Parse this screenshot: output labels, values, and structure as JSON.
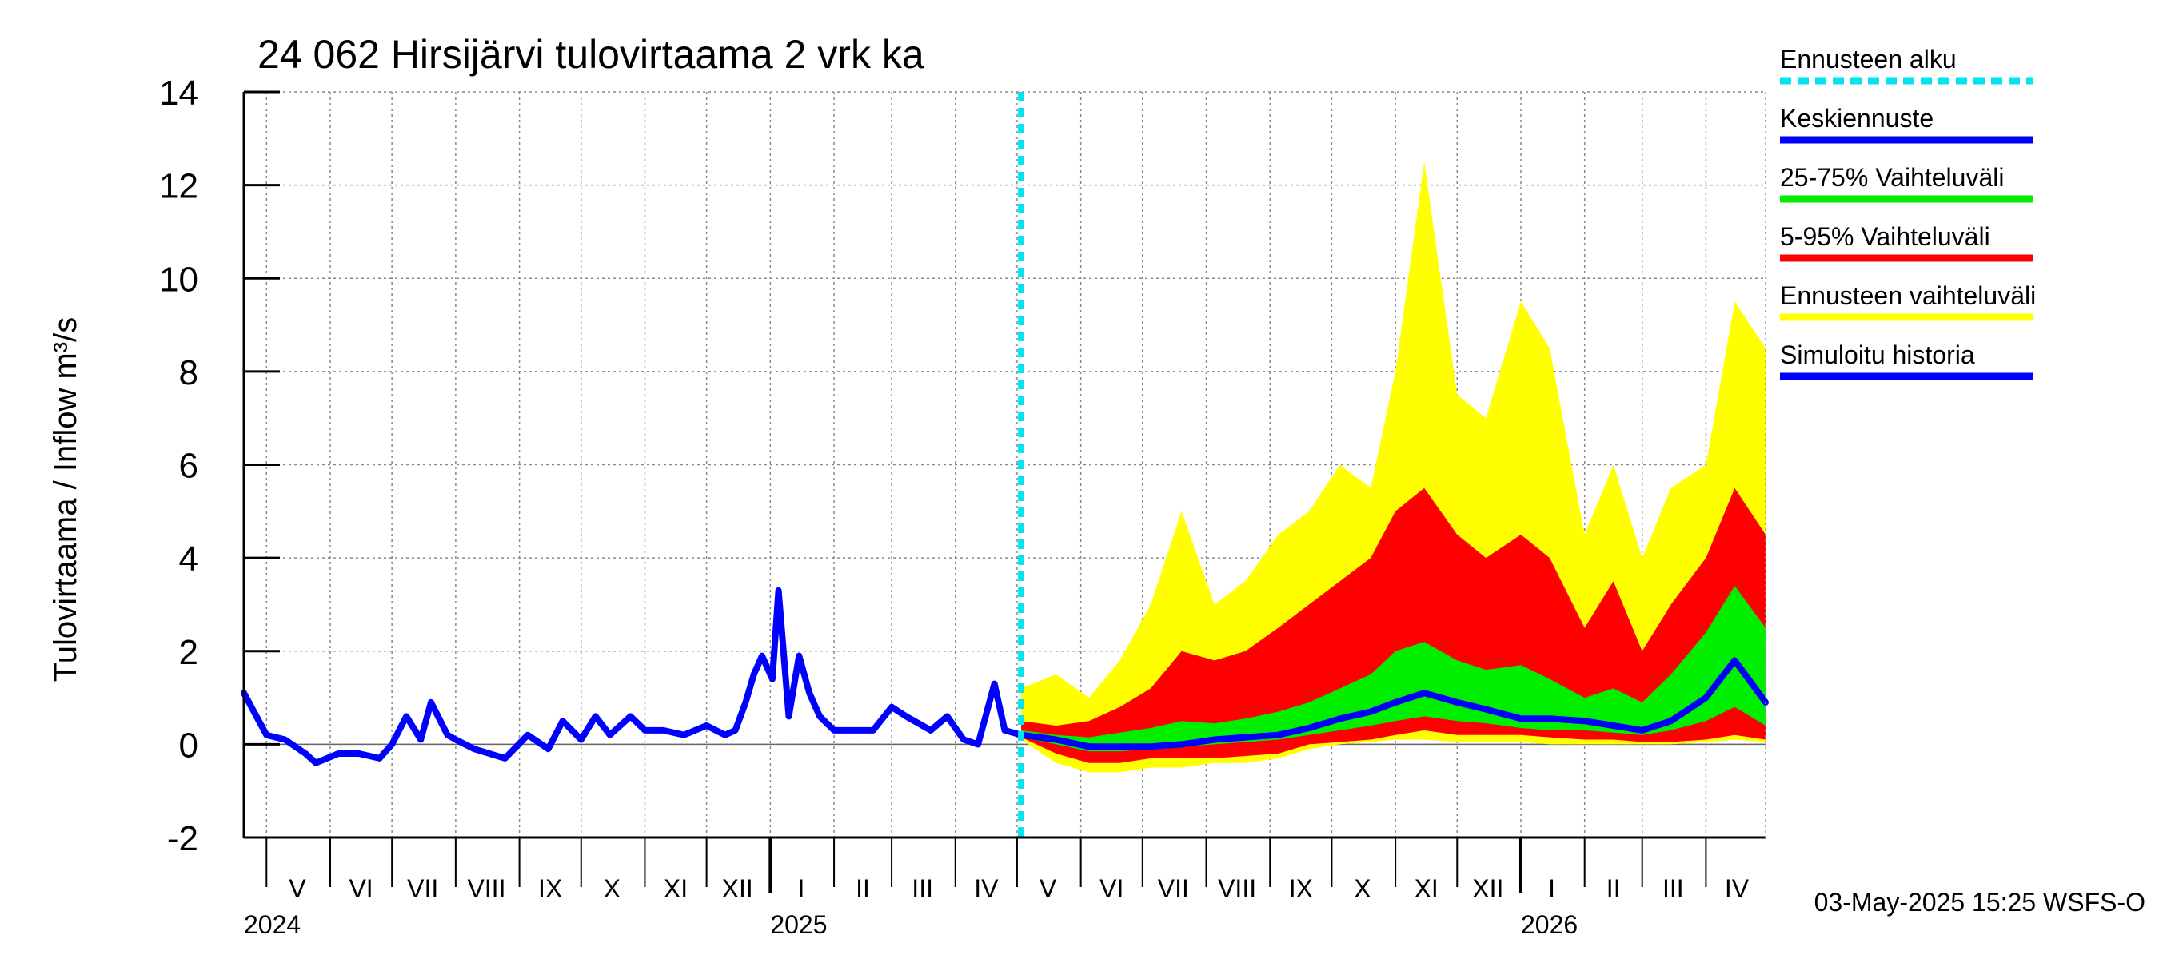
{
  "chart_data": {
    "type": "area",
    "title": "24 062 Hirsijärvi tulovirtaama 2 vrk ka",
    "ylabel": "Tulovirtaama / Inflow    m³/s",
    "ylim": [
      -2,
      14
    ],
    "yticks": [
      -2,
      0,
      2,
      4,
      6,
      8,
      10,
      12,
      14
    ],
    "x_range": [
      "2024-04-20",
      "2026-04-30"
    ],
    "forecast_start": "2025-05-03",
    "grid": true,
    "legend_position": "right",
    "month_labels": [
      {
        "label": "V",
        "date": "2024-05-16"
      },
      {
        "label": "VI",
        "date": "2024-06-16"
      },
      {
        "label": "VII",
        "date": "2024-07-16"
      },
      {
        "label": "VIII",
        "date": "2024-08-16"
      },
      {
        "label": "IX",
        "date": "2024-09-16"
      },
      {
        "label": "X",
        "date": "2024-10-16"
      },
      {
        "label": "XI",
        "date": "2024-11-16"
      },
      {
        "label": "XII",
        "date": "2024-12-16"
      },
      {
        "label": "I",
        "date": "2025-01-16"
      },
      {
        "label": "II",
        "date": "2025-02-15"
      },
      {
        "label": "III",
        "date": "2025-03-16"
      },
      {
        "label": "IV",
        "date": "2025-04-16"
      },
      {
        "label": "V",
        "date": "2025-05-16"
      },
      {
        "label": "VI",
        "date": "2025-06-16"
      },
      {
        "label": "VII",
        "date": "2025-07-16"
      },
      {
        "label": "VIII",
        "date": "2025-08-16"
      },
      {
        "label": "IX",
        "date": "2025-09-16"
      },
      {
        "label": "X",
        "date": "2025-10-16"
      },
      {
        "label": "XI",
        "date": "2025-11-16"
      },
      {
        "label": "XII",
        "date": "2025-12-16"
      },
      {
        "label": "I",
        "date": "2026-01-16"
      },
      {
        "label": "II",
        "date": "2026-02-15"
      },
      {
        "label": "III",
        "date": "2026-03-16"
      },
      {
        "label": "IV",
        "date": "2026-04-16"
      }
    ],
    "year_labels": [
      {
        "label": "2024",
        "date": "2024-04-20"
      },
      {
        "label": "2025",
        "date": "2025-01-01"
      },
      {
        "label": "2026",
        "date": "2026-01-01"
      }
    ],
    "legend": [
      {
        "label": "Ennusteen alku",
        "color": "#00e5ee",
        "style": "dashed"
      },
      {
        "label": "Keskiennuste",
        "color": "#0000ff",
        "style": "solid"
      },
      {
        "label": "25-75% Vaihteluväli",
        "color": "#00ee00",
        "style": "solid"
      },
      {
        "label": "5-95% Vaihteluväli",
        "color": "#ff0000",
        "style": "solid"
      },
      {
        "label": "Ennusteen vaihteluväli",
        "color": "#ffff00",
        "style": "solid"
      },
      {
        "label": "Simuloitu historia",
        "color": "#0000ff",
        "style": "solid"
      }
    ],
    "colors": {
      "history": "#0000ff",
      "median": "#0000ff",
      "band_25_75": "#00ee00",
      "band_5_95": "#ff0000",
      "band_range": "#ffff00",
      "forecast_start": "#00e5ee"
    },
    "series": [
      {
        "name": "Simuloitu historia",
        "x": [
          "2024-04-20",
          "2024-05-01",
          "2024-05-10",
          "2024-05-20",
          "2024-05-25",
          "2024-06-05",
          "2024-06-15",
          "2024-06-25",
          "2024-07-01",
          "2024-07-08",
          "2024-07-15",
          "2024-07-20",
          "2024-07-28",
          "2024-08-01",
          "2024-08-10",
          "2024-08-25",
          "2024-09-05",
          "2024-09-15",
          "2024-09-22",
          "2024-10-01",
          "2024-10-08",
          "2024-10-15",
          "2024-10-25",
          "2024-11-01",
          "2024-11-10",
          "2024-11-20",
          "2024-12-01",
          "2024-12-10",
          "2024-12-15",
          "2024-12-20",
          "2024-12-24",
          "2024-12-28",
          "2025-01-02",
          "2025-01-05",
          "2025-01-10",
          "2025-01-15",
          "2025-01-20",
          "2025-01-25",
          "2025-02-01",
          "2025-02-10",
          "2025-02-20",
          "2025-03-01",
          "2025-03-08",
          "2025-03-20",
          "2025-03-28",
          "2025-04-05",
          "2025-04-12",
          "2025-04-20",
          "2025-04-25",
          "2025-05-03"
        ],
        "y": [
          1.1,
          0.2,
          0.1,
          -0.2,
          -0.4,
          -0.2,
          -0.2,
          -0.3,
          0.0,
          0.6,
          0.1,
          0.9,
          0.2,
          0.1,
          -0.1,
          -0.3,
          0.2,
          -0.1,
          0.5,
          0.1,
          0.6,
          0.2,
          0.6,
          0.3,
          0.3,
          0.2,
          0.4,
          0.2,
          0.3,
          0.9,
          1.5,
          1.9,
          1.4,
          3.3,
          0.6,
          1.9,
          1.1,
          0.6,
          0.3,
          0.3,
          0.3,
          0.8,
          0.6,
          0.3,
          0.6,
          0.1,
          0.0,
          1.3,
          0.3,
          0.2
        ]
      },
      {
        "name": "Keskiennuste",
        "x": [
          "2025-05-03",
          "2025-05-20",
          "2025-06-05",
          "2025-06-20",
          "2025-07-05",
          "2025-07-20",
          "2025-08-05",
          "2025-08-20",
          "2025-09-05",
          "2025-09-20",
          "2025-10-05",
          "2025-10-20",
          "2025-11-01",
          "2025-11-15",
          "2025-12-01",
          "2025-12-15",
          "2026-01-01",
          "2026-01-15",
          "2026-02-01",
          "2026-02-15",
          "2026-03-01",
          "2026-03-15",
          "2026-04-01",
          "2026-04-15",
          "2026-04-30"
        ],
        "y": [
          0.2,
          0.1,
          -0.05,
          -0.05,
          -0.05,
          0.0,
          0.1,
          0.15,
          0.2,
          0.35,
          0.55,
          0.7,
          0.9,
          1.1,
          0.9,
          0.75,
          0.55,
          0.55,
          0.5,
          0.4,
          0.3,
          0.5,
          1.0,
          1.8,
          0.9
        ]
      },
      {
        "name": "Ennusteen vaihteluväli",
        "x": [
          "2025-05-03",
          "2025-05-20",
          "2025-06-05",
          "2025-06-20",
          "2025-07-05",
          "2025-07-20",
          "2025-08-05",
          "2025-08-20",
          "2025-09-05",
          "2025-09-20",
          "2025-10-05",
          "2025-10-20",
          "2025-11-01",
          "2025-11-15",
          "2025-12-01",
          "2025-12-15",
          "2026-01-01",
          "2026-01-15",
          "2026-02-01",
          "2026-02-15",
          "2026-03-01",
          "2026-03-15",
          "2026-04-01",
          "2026-04-15",
          "2026-04-30"
        ],
        "low": [
          0.1,
          -0.4,
          -0.6,
          -0.6,
          -0.5,
          -0.5,
          -0.4,
          -0.4,
          -0.3,
          -0.1,
          0.0,
          0.05,
          0.1,
          0.1,
          0.05,
          0.05,
          0.05,
          0.0,
          0.0,
          0.0,
          0.0,
          0.0,
          0.05,
          0.1,
          0.05
        ],
        "high": [
          1.2,
          1.5,
          1.0,
          1.8,
          3.0,
          5.0,
          3.0,
          3.5,
          4.5,
          5.0,
          6.0,
          5.5,
          8.0,
          12.5,
          7.5,
          7.0,
          9.5,
          8.5,
          4.5,
          6.0,
          4.0,
          5.5,
          6.0,
          9.5,
          8.5
        ]
      },
      {
        "name": "5-95% Vaihteluväli",
        "x": [
          "2025-05-03",
          "2025-05-20",
          "2025-06-05",
          "2025-06-20",
          "2025-07-05",
          "2025-07-20",
          "2025-08-05",
          "2025-08-20",
          "2025-09-05",
          "2025-09-20",
          "2025-10-05",
          "2025-10-20",
          "2025-11-01",
          "2025-11-15",
          "2025-12-01",
          "2025-12-15",
          "2026-01-01",
          "2026-01-15",
          "2026-02-01",
          "2026-02-15",
          "2026-03-01",
          "2026-03-15",
          "2026-04-01",
          "2026-04-15",
          "2026-04-30"
        ],
        "low": [
          0.15,
          -0.2,
          -0.4,
          -0.4,
          -0.3,
          -0.3,
          -0.3,
          -0.25,
          -0.2,
          0.0,
          0.05,
          0.1,
          0.2,
          0.3,
          0.2,
          0.2,
          0.2,
          0.15,
          0.1,
          0.1,
          0.05,
          0.05,
          0.1,
          0.2,
          0.1
        ],
        "high": [
          0.5,
          0.4,
          0.5,
          0.8,
          1.2,
          2.0,
          1.8,
          2.0,
          2.5,
          3.0,
          3.5,
          4.0,
          5.0,
          5.5,
          4.5,
          4.0,
          4.5,
          4.0,
          2.5,
          3.5,
          2.0,
          3.0,
          4.0,
          5.5,
          4.5
        ]
      },
      {
        "name": "25-75% Vaihteluväli",
        "x": [
          "2025-05-03",
          "2025-05-20",
          "2025-06-05",
          "2025-06-20",
          "2025-07-05",
          "2025-07-20",
          "2025-08-05",
          "2025-08-20",
          "2025-09-05",
          "2025-09-20",
          "2025-10-05",
          "2025-10-20",
          "2025-11-01",
          "2025-11-15",
          "2025-12-01",
          "2025-12-15",
          "2026-01-01",
          "2026-01-15",
          "2026-02-01",
          "2026-02-15",
          "2026-03-01",
          "2026-03-15",
          "2026-04-01",
          "2026-04-15",
          "2026-04-30"
        ],
        "low": [
          0.15,
          0.0,
          -0.15,
          -0.15,
          -0.1,
          -0.05,
          0.0,
          0.05,
          0.1,
          0.2,
          0.3,
          0.4,
          0.5,
          0.6,
          0.5,
          0.45,
          0.35,
          0.3,
          0.3,
          0.25,
          0.2,
          0.3,
          0.5,
          0.8,
          0.4
        ],
        "high": [
          0.3,
          0.2,
          0.15,
          0.25,
          0.35,
          0.5,
          0.45,
          0.55,
          0.7,
          0.9,
          1.2,
          1.5,
          2.0,
          2.2,
          1.8,
          1.6,
          1.7,
          1.4,
          1.0,
          1.2,
          0.9,
          1.5,
          2.4,
          3.4,
          2.5
        ]
      }
    ]
  },
  "footer": {
    "timestamp": "03-May-2025 15:25 WSFS-O"
  }
}
